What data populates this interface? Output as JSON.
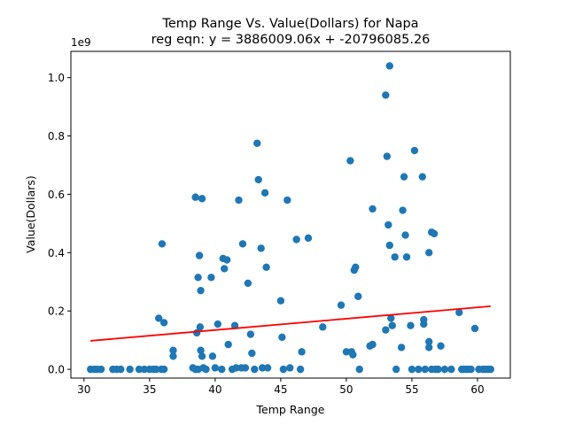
{
  "chart_data": {
    "type": "scatter",
    "title_line1": "Temp Range Vs. Value(Dollars) for Napa",
    "title_line2": "reg eqn: y = 3886009.06x + -20796085.26",
    "xlabel": "Temp Range",
    "ylabel": "Value(Dollars)",
    "y_multiplier_label": "1e9",
    "xlim": [
      29.0,
      62.5
    ],
    "ylim": [
      -0.03,
      1.09
    ],
    "x_ticks": [
      30,
      35,
      40,
      45,
      50,
      55,
      60
    ],
    "x_tick_labels": [
      "30",
      "35",
      "40",
      "45",
      "50",
      "55",
      "60"
    ],
    "y_ticks": [
      0.0,
      0.2,
      0.4,
      0.6,
      0.8,
      1.0
    ],
    "y_tick_labels": [
      "0.0",
      "0.2",
      "0.4",
      "0.6",
      "0.8",
      "1.0"
    ],
    "point_color": "#1f77b4",
    "line_color": "#ff0000",
    "regression": {
      "slope": 3886009.06,
      "intercept": -20796085.26,
      "x_range": [
        30.5,
        61.0
      ]
    },
    "points": [
      [
        30.5,
        0
      ],
      [
        30.8,
        0
      ],
      [
        31.0,
        0
      ],
      [
        31.3,
        0
      ],
      [
        32.2,
        0
      ],
      [
        32.5,
        0
      ],
      [
        32.8,
        0
      ],
      [
        33.5,
        0
      ],
      [
        34.2,
        0
      ],
      [
        34.6,
        0
      ],
      [
        35.0,
        0
      ],
      [
        35.3,
        0
      ],
      [
        35.5,
        0
      ],
      [
        35.9,
        0
      ],
      [
        36.1,
        0
      ],
      [
        35.7,
        0.175
      ],
      [
        35.95,
        0.43
      ],
      [
        36.1,
        0.16
      ],
      [
        36.8,
        0.045
      ],
      [
        36.8,
        0.065
      ],
      [
        38.3,
        0.005
      ],
      [
        38.5,
        0.59
      ],
      [
        38.6,
        0.125
      ],
      [
        38.7,
        0.315
      ],
      [
        38.8,
        0.39
      ],
      [
        38.9,
        0.27
      ],
      [
        38.9,
        0.065
      ],
      [
        38.85,
        0.145
      ],
      [
        39.0,
        0.585
      ],
      [
        39.0,
        0.045
      ],
      [
        39.1,
        0.005
      ],
      [
        38.5,
        0
      ],
      [
        38.7,
        0
      ],
      [
        39.3,
        0
      ],
      [
        39.7,
        0.315
      ],
      [
        39.8,
        0.045
      ],
      [
        40.0,
        0.005
      ],
      [
        40.2,
        0.155
      ],
      [
        40.5,
        0
      ],
      [
        40.6,
        0.38
      ],
      [
        40.7,
        0.345
      ],
      [
        40.9,
        0.375
      ],
      [
        41.0,
        0.085
      ],
      [
        41.3,
        0
      ],
      [
        41.5,
        0.15
      ],
      [
        41.8,
        0.58
      ],
      [
        41.6,
        0.005
      ],
      [
        42.0,
        0.005
      ],
      [
        42.1,
        0.43
      ],
      [
        42.3,
        0.005
      ],
      [
        42.5,
        0.295
      ],
      [
        42.7,
        0.12
      ],
      [
        42.8,
        0.055
      ],
      [
        43.0,
        0
      ],
      [
        43.2,
        0.775
      ],
      [
        43.3,
        0.65
      ],
      [
        43.5,
        0.415
      ],
      [
        43.8,
        0.605
      ],
      [
        43.9,
        0.35
      ],
      [
        43.6,
        0.005
      ],
      [
        44.0,
        0.005
      ],
      [
        45.0,
        0.235
      ],
      [
        45.1,
        0.11
      ],
      [
        45.2,
        0
      ],
      [
        45.5,
        0.58
      ],
      [
        45.7,
        0.005
      ],
      [
        46.2,
        0.445
      ],
      [
        46.5,
        0
      ],
      [
        46.6,
        0.06
      ],
      [
        47.1,
        0.45
      ],
      [
        48.2,
        0.145
      ],
      [
        49.6,
        0.22
      ],
      [
        50.0,
        0.06
      ],
      [
        50.3,
        0.715
      ],
      [
        50.4,
        0.06
      ],
      [
        50.5,
        0.05
      ],
      [
        50.6,
        0.34
      ],
      [
        50.7,
        0.35
      ],
      [
        50.9,
        0.25
      ],
      [
        51.0,
        0
      ],
      [
        51.8,
        0.08
      ],
      [
        52.0,
        0.55
      ],
      [
        52.0,
        0.085
      ],
      [
        53.0,
        0.94
      ],
      [
        53.0,
        0.135
      ],
      [
        53.1,
        0.73
      ],
      [
        53.2,
        0.495
      ],
      [
        53.3,
        1.04
      ],
      [
        53.3,
        0.425
      ],
      [
        53.4,
        0.175
      ],
      [
        53.5,
        0.15
      ],
      [
        53.7,
        0.385
      ],
      [
        53.8,
        0
      ],
      [
        54.2,
        0.075
      ],
      [
        54.3,
        0.545
      ],
      [
        54.4,
        0.66
      ],
      [
        54.6,
        0.385
      ],
      [
        54.5,
        0.46
      ],
      [
        54.9,
        0.15
      ],
      [
        55.2,
        0.75
      ],
      [
        55.5,
        0
      ],
      [
        55.8,
        0.66
      ],
      [
        55.9,
        0.17
      ],
      [
        55.9,
        0.155
      ],
      [
        56.0,
        0
      ],
      [
        56.3,
        0.4
      ],
      [
        56.3,
        0.095
      ],
      [
        56.3,
        0.075
      ],
      [
        56.5,
        0.47
      ],
      [
        56.7,
        0.465
      ],
      [
        56.8,
        0
      ],
      [
        57.2,
        0.08
      ],
      [
        57.5,
        0
      ],
      [
        58.0,
        0
      ],
      [
        58.6,
        0.195
      ],
      [
        58.8,
        0
      ],
      [
        59.1,
        0
      ],
      [
        59.3,
        0
      ],
      [
        59.8,
        0.14
      ],
      [
        60.1,
        0
      ],
      [
        60.4,
        0
      ],
      [
        60.6,
        0
      ],
      [
        60.8,
        0
      ],
      [
        61.0,
        0
      ],
      [
        57.0,
        0
      ],
      [
        56.5,
        0
      ],
      [
        55.0,
        0
      ],
      [
        59.5,
        0
      ],
      [
        58.9,
        0
      ]
    ]
  }
}
